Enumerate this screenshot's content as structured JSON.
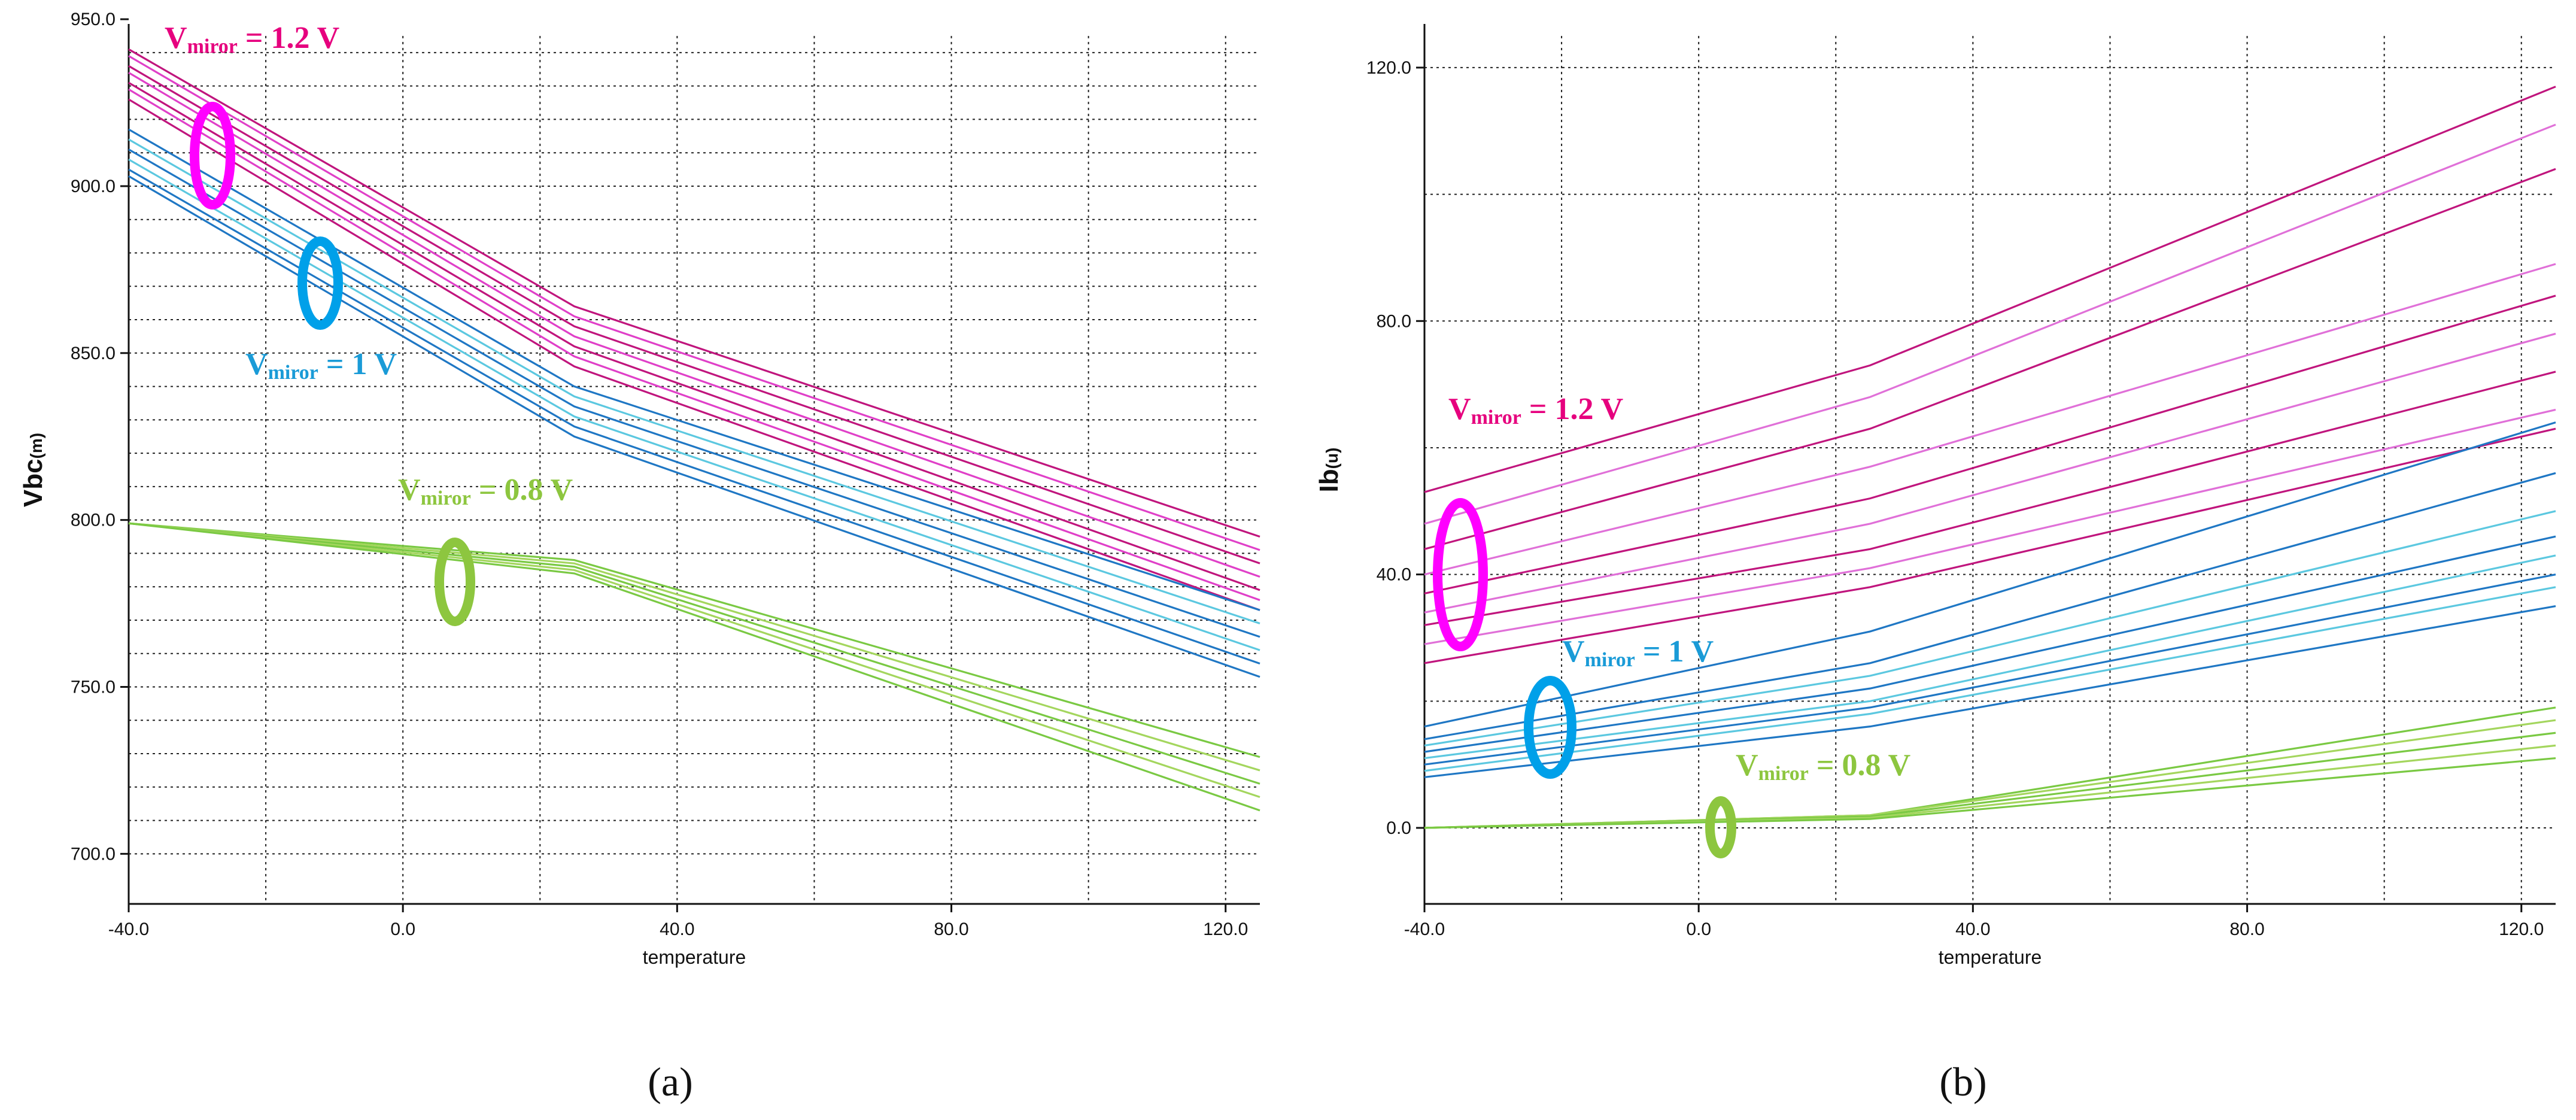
{
  "figure": {
    "panel_labels": [
      "(a)",
      "(b)"
    ]
  },
  "chart_data": [
    {
      "type": "line",
      "panel": "(a)",
      "xlabel": "temperature",
      "ylabel_main": "Vbc",
      "ylabel_unit": "(m)",
      "xlim": [
        -40,
        125
      ],
      "ylim": [
        685,
        945
      ],
      "xticks": [
        -40,
        0,
        40,
        80,
        120
      ],
      "xtick_labels": [
        "-40.0",
        "0.0",
        "40.0",
        "80.0",
        "120.0"
      ],
      "yticks": [
        700,
        750,
        800,
        850,
        900,
        950
      ],
      "ytick_labels": [
        "700.0",
        "750.0",
        "800.0",
        "850.0",
        "900.0",
        "950.0"
      ],
      "x": [
        -40,
        25,
        125
      ],
      "groups": [
        {
          "name": "Vmiror = 1.2 V",
          "annotation_main": "V",
          "annotation_sub": "miror",
          "annotation_rest": " = 1.2 V",
          "color": "#e6007e",
          "ellipse_color": "#ff00ff",
          "series": [
            {
              "values": [
                941,
                864,
                795
              ],
              "color": "#c0157d"
            },
            {
              "values": [
                939,
                861,
                791
              ],
              "color": "#e040c8"
            },
            {
              "values": [
                936,
                858,
                787
              ],
              "color": "#c0157d"
            },
            {
              "values": [
                934,
                855,
                783
              ],
              "color": "#e040c8"
            },
            {
              "values": [
                931,
                852,
                779
              ],
              "color": "#c0157d"
            },
            {
              "values": [
                929,
                849,
                776
              ],
              "color": "#e040c8"
            },
            {
              "values": [
                926,
                846,
                773
              ],
              "color": "#c0157d"
            }
          ]
        },
        {
          "name": "Vmiror = 1 V",
          "annotation_main": "V",
          "annotation_sub": "miror",
          "annotation_rest": " = 1 V",
          "color": "#1a9bd7",
          "ellipse_color": "#00a0e9",
          "series": [
            {
              "values": [
                917,
                840,
                773
              ],
              "color": "#1f77c4"
            },
            {
              "values": [
                914,
                837,
                769
              ],
              "color": "#5cc8e0"
            },
            {
              "values": [
                911,
                834,
                765
              ],
              "color": "#1f77c4"
            },
            {
              "values": [
                908,
                831,
                761
              ],
              "color": "#5cc8e0"
            },
            {
              "values": [
                905,
                828,
                757
              ],
              "color": "#1f77c4"
            },
            {
              "values": [
                903,
                825,
                753
              ],
              "color": "#1f77c4"
            }
          ]
        },
        {
          "name": "Vmiror = 0.8 V",
          "annotation_main": "V",
          "annotation_sub": "miror",
          "annotation_rest": " = 0.8 V",
          "color": "#8dc63f",
          "ellipse_color": "#8dc63f",
          "series": [
            {
              "values": [
                799,
                788,
                729
              ],
              "color": "#7ac943"
            },
            {
              "values": [
                799,
                787,
                725
              ],
              "color": "#a4d65e"
            },
            {
              "values": [
                799,
                786,
                721
              ],
              "color": "#7ac943"
            },
            {
              "values": [
                799,
                785,
                717
              ],
              "color": "#a4d65e"
            },
            {
              "values": [
                799,
                784,
                713
              ],
              "color": "#7ac943"
            }
          ]
        }
      ]
    },
    {
      "type": "line",
      "panel": "(b)",
      "xlabel": "temperature",
      "ylabel_main": "Ib",
      "ylabel_unit": "(u)",
      "xlim": [
        -40,
        125
      ],
      "ylim": [
        -12,
        125
      ],
      "xticks": [
        -40,
        0,
        40,
        80,
        120
      ],
      "xtick_labels": [
        "-40.0",
        "0.0",
        "40.0",
        "80.0",
        "120.0"
      ],
      "yticks": [
        0,
        40,
        80,
        120
      ],
      "ytick_labels": [
        "0.0",
        "40.0",
        "80.0",
        "120.0"
      ],
      "x": [
        -40,
        25,
        125
      ],
      "groups": [
        {
          "name": "Vmiror = 1.2 V",
          "annotation_main": "V",
          "annotation_sub": "miror",
          "annotation_rest": " = 1.2 V",
          "color": "#e6007e",
          "ellipse_color": "#ff00ff",
          "series": [
            {
              "values": [
                53,
                73,
                117
              ],
              "color": "#c0157d"
            },
            {
              "values": [
                48,
                68,
                111
              ],
              "color": "#e070d8"
            },
            {
              "values": [
                44,
                63,
                104
              ],
              "color": "#c0157d"
            },
            {
              "values": [
                40,
                57,
                89
              ],
              "color": "#e070d8"
            },
            {
              "values": [
                37,
                52,
                84
              ],
              "color": "#c0157d"
            },
            {
              "values": [
                34,
                48,
                78
              ],
              "color": "#e070d8"
            },
            {
              "values": [
                32,
                44,
                72
              ],
              "color": "#c0157d"
            },
            {
              "values": [
                29,
                41,
                66
              ],
              "color": "#e070d8"
            },
            {
              "values": [
                26,
                38,
                63
              ],
              "color": "#c0157d"
            }
          ]
        },
        {
          "name": "Vmiror = 1 V",
          "annotation_main": "V",
          "annotation_sub": "miror",
          "annotation_rest": " = 1 V",
          "color": "#1a9bd7",
          "ellipse_color": "#00a0e9",
          "series": [
            {
              "values": [
                16,
                31,
                64
              ],
              "color": "#1f77c4"
            },
            {
              "values": [
                14,
                26,
                56
              ],
              "color": "#1f77c4"
            },
            {
              "values": [
                13,
                24,
                50
              ],
              "color": "#5cc8e0"
            },
            {
              "values": [
                12,
                22,
                46
              ],
              "color": "#1f77c4"
            },
            {
              "values": [
                11,
                20,
                43
              ],
              "color": "#5cc8e0"
            },
            {
              "values": [
                10,
                19,
                40
              ],
              "color": "#1f77c4"
            },
            {
              "values": [
                9,
                18,
                38
              ],
              "color": "#5cc8e0"
            },
            {
              "values": [
                8,
                16,
                35
              ],
              "color": "#1f77c4"
            }
          ]
        },
        {
          "name": "Vmiror = 0.8 V",
          "annotation_main": "V",
          "annotation_sub": "miror",
          "annotation_rest": " = 0.8 V",
          "color": "#8dc63f",
          "ellipse_color": "#8dc63f",
          "series": [
            {
              "values": [
                0,
                2,
                19
              ],
              "color": "#7ac943"
            },
            {
              "values": [
                0,
                2,
                17
              ],
              "color": "#a4d65e"
            },
            {
              "values": [
                0,
                1.8,
                15
              ],
              "color": "#7ac943"
            },
            {
              "values": [
                0,
                1.6,
                13
              ],
              "color": "#a4d65e"
            },
            {
              "values": [
                0,
                1.4,
                11
              ],
              "color": "#7ac943"
            }
          ]
        }
      ]
    }
  ]
}
